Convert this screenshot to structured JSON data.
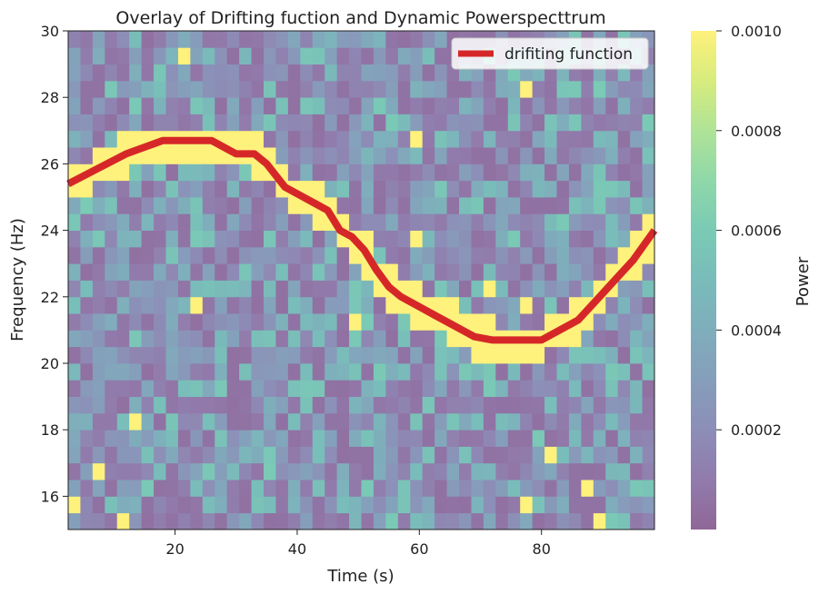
{
  "chart_data": {
    "type": "heatmap",
    "title": "Overlay of Drifting fuction and Dynamic Powerspecttrum",
    "xlabel": "Time (s)",
    "ylabel": "Frequency (Hz)",
    "xlim": [
      2.5,
      98.5
    ],
    "ylim": [
      15,
      30
    ],
    "xticks": [
      20,
      40,
      60,
      80
    ],
    "yticks": [
      16,
      18,
      20,
      22,
      24,
      26,
      28,
      30
    ],
    "heatmap": {
      "time_bins": 48,
      "freq_bins": 30,
      "background_power_range": [
        5e-05,
        0.0006
      ],
      "ridge_power": 0.001
    },
    "colorbar": {
      "label": "Power",
      "min": 0.0,
      "max": 0.001,
      "ticks": [
        "0.0002",
        "0.0004",
        "0.0006",
        "0.0008",
        "0.0010"
      ],
      "tick_values": [
        0.0002,
        0.0004,
        0.0006,
        0.0008,
        0.001
      ]
    },
    "series": [
      {
        "name": "drifiting function",
        "color": "#d62728",
        "x": [
          2.5,
          12,
          18,
          26,
          30,
          33,
          35,
          38,
          41,
          43,
          45,
          47,
          49,
          51,
          53,
          55,
          57,
          60,
          63,
          66,
          69,
          72,
          76,
          80,
          83,
          86,
          89,
          92,
          95,
          98.5
        ],
        "y": [
          25.4,
          26.3,
          26.7,
          26.7,
          26.3,
          26.3,
          26.0,
          25.3,
          25.0,
          24.8,
          24.6,
          24.0,
          23.8,
          23.4,
          22.8,
          22.3,
          22.0,
          21.7,
          21.4,
          21.1,
          20.8,
          20.7,
          20.7,
          20.7,
          21.0,
          21.3,
          21.9,
          22.5,
          23.1,
          24.0
        ]
      }
    ],
    "legend": {
      "position": "top-right"
    },
    "colors": {
      "viridis_low": "#440154",
      "viridis_high": "#fde725",
      "line": "#d62728"
    }
  }
}
